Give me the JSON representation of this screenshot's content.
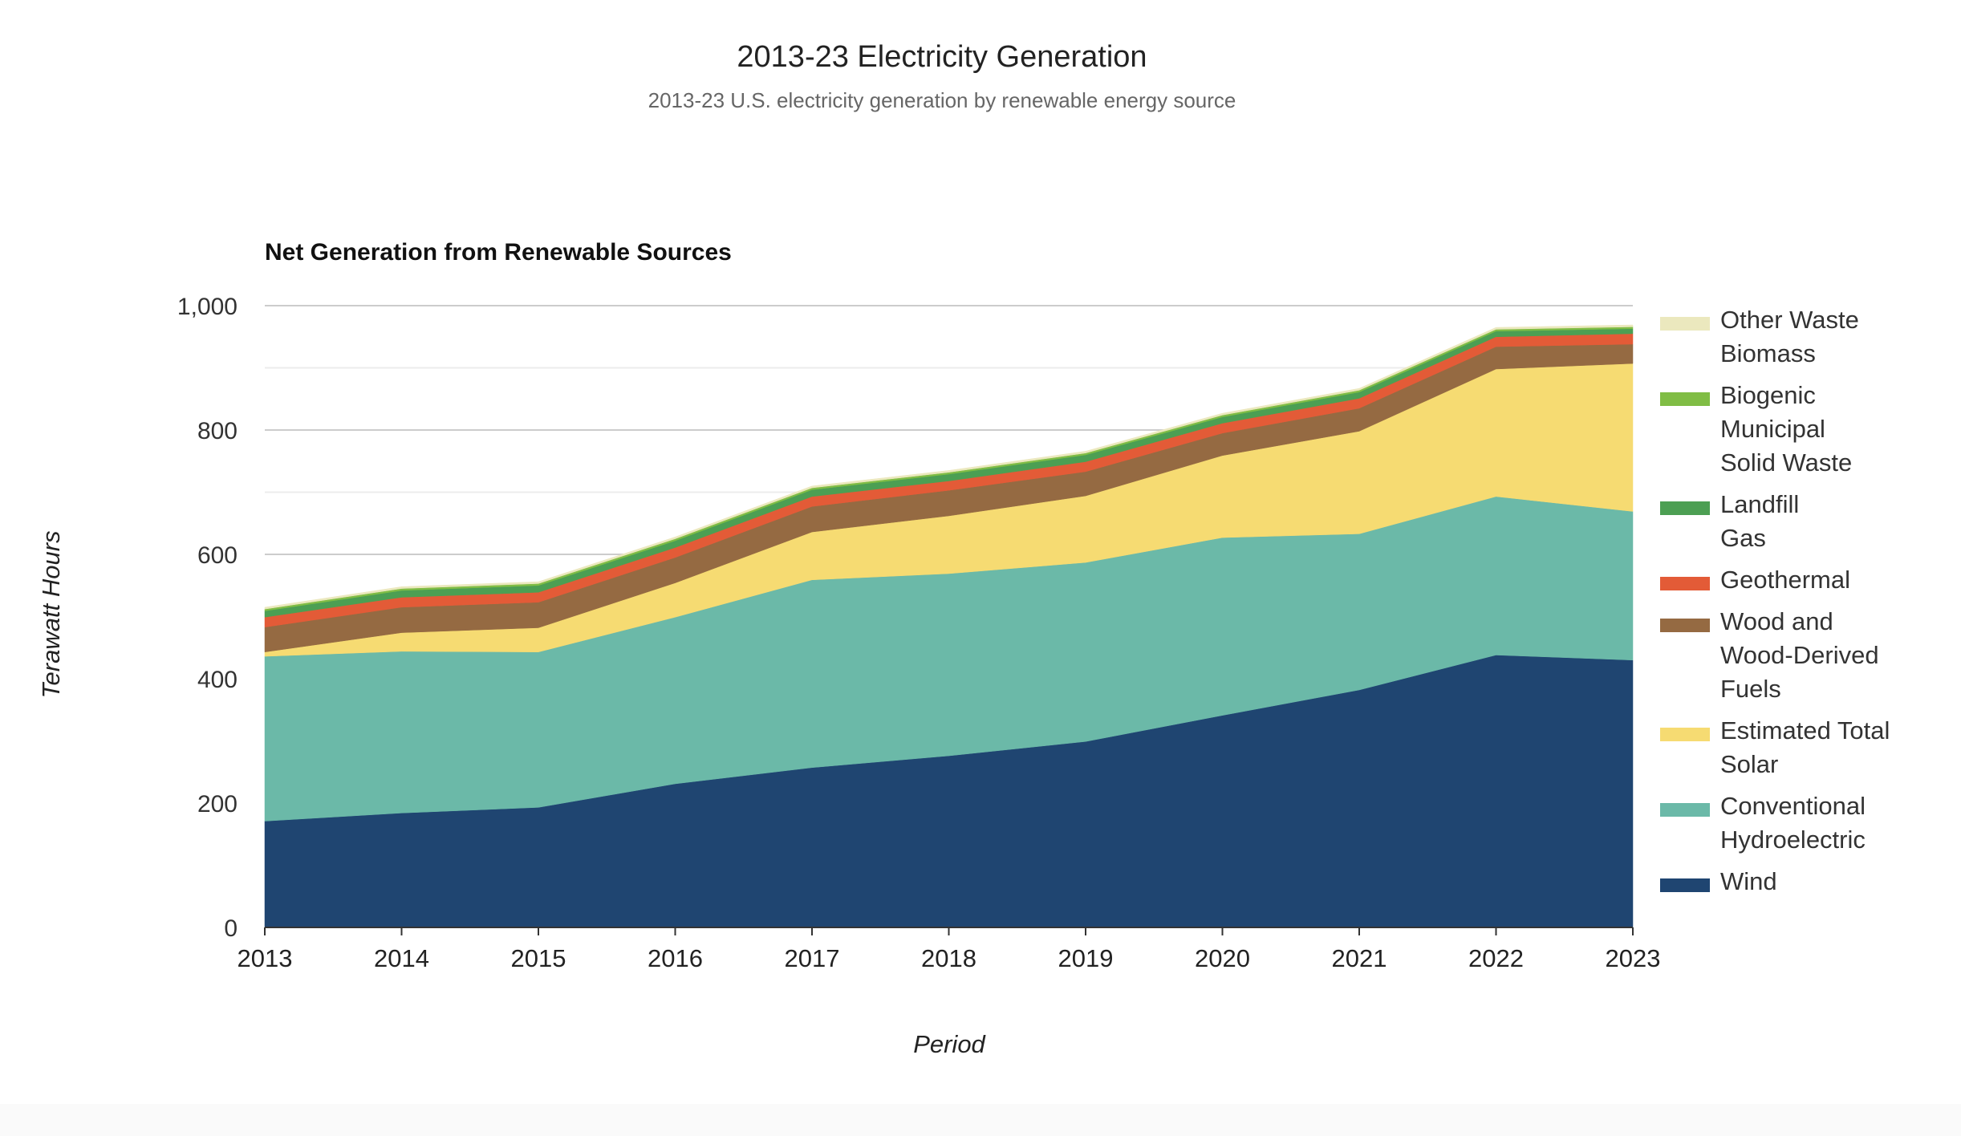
{
  "chart_data": {
    "type": "area",
    "stacked": true,
    "title": "2013-23 Electricity Generation",
    "subtitle": "2013-23 U.S. electricity generation by renewable energy source",
    "inner_title": "Net Generation from Renewable Sources",
    "xlabel": "Period",
    "ylabel": "Terawatt Hours",
    "ylim": [
      0,
      1000
    ],
    "yticks": [
      0,
      200,
      400,
      600,
      800,
      1000
    ],
    "ytick_labels": [
      "0",
      "200",
      "400",
      "600",
      "800",
      "1,000"
    ],
    "grid": true,
    "legend_position": "right",
    "x": [
      "2013",
      "2014",
      "2015",
      "2016",
      "2017",
      "2018",
      "2019",
      "2020",
      "2021",
      "2022",
      "2023"
    ],
    "series": [
      {
        "name": "Wind",
        "legend_lines": [
          "Wind"
        ],
        "color": "#1f4571",
        "values": [
          171,
          184,
          193,
          231,
          257,
          276,
          299,
          341,
          382,
          438,
          430
        ]
      },
      {
        "name": "Conventional Hydroelectric",
        "legend_lines": [
          "Conventional",
          "Hydroelectric"
        ],
        "color": "#6bb9a8",
        "values": [
          265,
          260,
          250,
          268,
          302,
          293,
          288,
          286,
          251,
          255,
          239
        ]
      },
      {
        "name": "Estimated Total Solar",
        "legend_lines": [
          "Estimated Total",
          "Solar"
        ],
        "color": "#f6db72",
        "values": [
          7,
          30,
          39,
          55,
          77,
          93,
          107,
          132,
          165,
          205,
          238
        ]
      },
      {
        "name": "Wood and Wood-Derived Fuels",
        "legend_lines": [
          "Wood and",
          "Wood-Derived",
          "Fuels"
        ],
        "color": "#956a42",
        "values": [
          40,
          41,
          41,
          41,
          41,
          41,
          39,
          36,
          37,
          36,
          31
        ]
      },
      {
        "name": "Geothermal",
        "legend_lines": [
          "Geothermal"
        ],
        "color": "#e35b37",
        "values": [
          16,
          16,
          16,
          16,
          16,
          15,
          16,
          16,
          16,
          16,
          17
        ]
      },
      {
        "name": "Landfill Gas",
        "legend_lines": [
          "Landfill",
          "Gas"
        ],
        "color": "#4c9f53",
        "values": [
          10,
          11,
          11,
          11,
          11,
          11,
          11,
          10,
          10,
          9,
          8
        ]
      },
      {
        "name": "Biogenic Municipal Solid Waste",
        "legend_lines": [
          "Biogenic",
          "Municipal",
          "Solid Waste"
        ],
        "color": "#80bd45",
        "values": [
          3,
          3,
          3,
          3,
          3,
          3,
          3,
          3,
          3,
          3,
          3
        ]
      },
      {
        "name": "Other Waste Biomass",
        "legend_lines": [
          "Other Waste",
          "Biomass"
        ],
        "color": "#ebe8be",
        "values": [
          3,
          3,
          3,
          3,
          3,
          3,
          3,
          3,
          3,
          3,
          3
        ]
      }
    ]
  }
}
